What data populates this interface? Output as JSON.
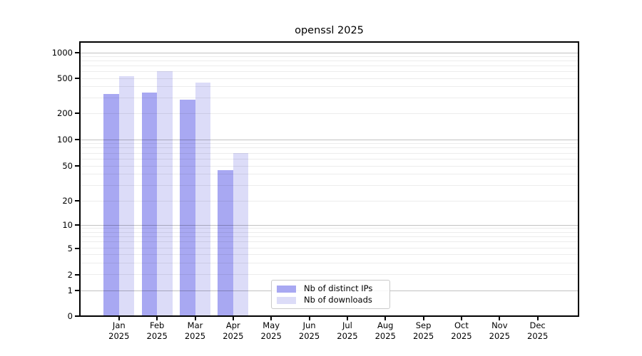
{
  "figure": {
    "background": "#ffffff"
  },
  "chart_data": {
    "type": "bar",
    "title": "openssl 2025",
    "categories": [
      "Jan 2025",
      "Feb 2025",
      "Mar 2025",
      "Apr 2025",
      "May 2025",
      "Jun 2025",
      "Jul 2025",
      "Aug 2025",
      "Sep 2025",
      "Oct 2025",
      "Nov 2025",
      "Dec 2025"
    ],
    "x_tick_labels": [
      {
        "month": "Jan",
        "year": "2025"
      },
      {
        "month": "Feb",
        "year": "2025"
      },
      {
        "month": "Mar",
        "year": "2025"
      },
      {
        "month": "Apr",
        "year": "2025"
      },
      {
        "month": "May",
        "year": "2025"
      },
      {
        "month": "Jun",
        "year": "2025"
      },
      {
        "month": "Jul",
        "year": "2025"
      },
      {
        "month": "Aug",
        "year": "2025"
      },
      {
        "month": "Sep",
        "year": "2025"
      },
      {
        "month": "Oct",
        "year": "2025"
      },
      {
        "month": "Nov",
        "year": "2025"
      },
      {
        "month": "Dec",
        "year": "2025"
      }
    ],
    "series": [
      {
        "name": "Nb of distinct IPs",
        "color": "#a8a8f2",
        "values": [
          330,
          345,
          285,
          45,
          null,
          null,
          null,
          null,
          null,
          null,
          null,
          null
        ]
      },
      {
        "name": "Nb of downloads",
        "color": "#dcdcf8",
        "values": [
          525,
          610,
          450,
          70,
          null,
          null,
          null,
          null,
          null,
          null,
          null,
          null
        ]
      }
    ],
    "xlabel": "",
    "ylabel": "",
    "y_axis": {
      "ticks": [
        0,
        1,
        2,
        5,
        10,
        20,
        50,
        100,
        200,
        500,
        1000
      ],
      "scale": "log-like with compressed 0-1 region",
      "ylim": [
        0,
        1300
      ]
    },
    "grid": {
      "orientation": "horizontal",
      "major_lines": [
        1,
        10,
        100,
        1000
      ],
      "minor_lines": "2-9, 20-90, 200-900"
    },
    "legend": {
      "position": "lower-center-inside",
      "entries": [
        "Nb of distinct IPs",
        "Nb of downloads"
      ]
    }
  },
  "colors": {
    "bar_distinct_ips": "#a8a8f2",
    "bar_downloads": "#dcdcf8",
    "grid_major": "#c2c2c2",
    "grid_minor": "#ececec",
    "axis": "#000000",
    "text": "#000000",
    "legend_border": "#c9c9c9"
  }
}
